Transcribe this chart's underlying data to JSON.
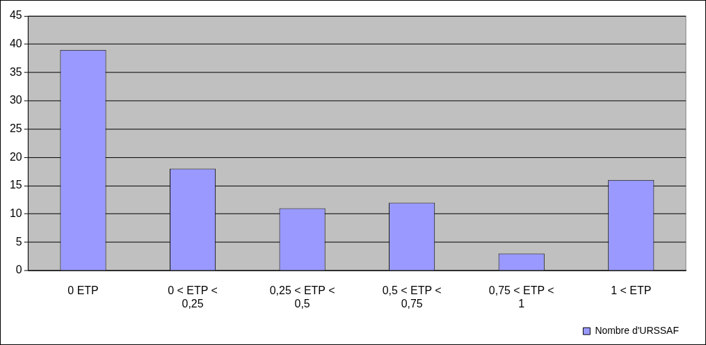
{
  "chart_data": {
    "type": "bar",
    "categories": [
      "0 ETP",
      "0 < ETP < 0,25",
      "0,25 < ETP < 0,5",
      "0,5 < ETP < 0,75",
      "0,75 < ETP < 1",
      "1 < ETP"
    ],
    "series": [
      {
        "name": "Nombre d'URSSAF",
        "color": "#9999ff",
        "values": [
          39,
          18,
          11,
          12,
          3,
          16
        ]
      }
    ],
    "ylim": [
      0,
      45
    ],
    "yticks": [
      0,
      5,
      10,
      15,
      20,
      25,
      30,
      35,
      40,
      45
    ],
    "grid": "y",
    "legend": "bottom right"
  }
}
